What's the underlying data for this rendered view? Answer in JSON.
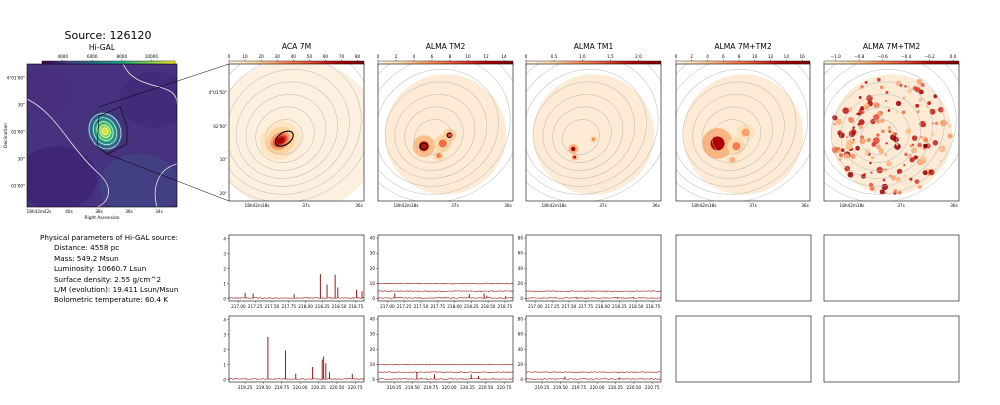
{
  "title": "Source: 126120",
  "colors": {
    "frame": "#000000",
    "axis_text": "#000000",
    "spectrum": "#8b0000",
    "contour": "#b9b9b9",
    "hot_low": "#fff5eb",
    "hot_high": "#7f0000",
    "viridis_low": "#440154",
    "viridis_high": "#fde725"
  },
  "params": {
    "header": "Physical parameters of Hi-GAL source:",
    "lines": [
      "Distance: 4558 pc",
      "Mass: 549.2 Msun",
      "Luminosity: 10660.7 Lsun",
      "Surface density: 2.55 g/cm^2",
      "L/M (evolution): 19.411 Lsun/Msun",
      "Bolometric temperature: 60.4 K"
    ]
  },
  "chart_data": [
    {
      "id": "higal",
      "type": "heatmap",
      "title": "Hi-GAL",
      "colormap": "viridis",
      "colorbar": {
        "ticks": [
          "4000",
          "6000",
          "8000",
          "10000"
        ],
        "range": [
          2600,
          11600
        ]
      },
      "yticks": [
        "4°01'00\"",
        "30\"",
        "02'00\"",
        "30\"",
        "03'00\""
      ],
      "xticks": [
        "18h42m42s",
        "40s",
        "38s",
        "36s",
        "34s"
      ],
      "ylabel": "Declination",
      "xlabel": "Right Ascension"
    },
    {
      "id": "aca7m",
      "type": "heatmap",
      "title": "ACA 7M",
      "colormap": "OrRd",
      "colorbar": {
        "ticks": [
          "0",
          "10",
          "20",
          "30",
          "40",
          "50",
          "60",
          "70",
          "80"
        ],
        "range": [
          0,
          84
        ]
      },
      "yticks": [
        "4°01'50\"",
        "02'00\"",
        "10\"",
        "20\""
      ],
      "xticks": [
        "18h42m38s",
        "37s",
        "36s"
      ]
    },
    {
      "id": "almatm2",
      "type": "heatmap",
      "title": "ALMA TM2",
      "colormap": "OrRd",
      "colorbar": {
        "ticks": [
          "0",
          "2",
          "4",
          "6",
          "8",
          "10",
          "12",
          "14"
        ],
        "range": [
          0,
          15
        ]
      },
      "xticks": [
        "18h42m38s",
        "37s",
        "36s"
      ]
    },
    {
      "id": "almatm1",
      "type": "heatmap",
      "title": "ALMA TM1",
      "colormap": "OrRd",
      "colorbar": {
        "ticks": [
          "0",
          "0.5",
          "1.0",
          "1.5",
          "2.0"
        ],
        "range": [
          0,
          2.4
        ]
      },
      "xticks": [
        "18h42m38s",
        "37s",
        "36s"
      ]
    },
    {
      "id": "alma7mtm2",
      "type": "heatmap",
      "title": "ALMA 7M+TM2",
      "colormap": "OrRd",
      "colorbar": {
        "ticks": [
          "0",
          "2",
          "4",
          "6",
          "8",
          "10",
          "12",
          "14",
          "16"
        ],
        "range": [
          0,
          17
        ]
      },
      "xticks": [
        "18h42m38s",
        "37s",
        "36s"
      ]
    },
    {
      "id": "alma7mtm2b",
      "type": "heatmap",
      "title": "ALMA 7M+TM2",
      "colormap": "OrRd",
      "colorbar": {
        "ticks": [
          "−1.0",
          "−0.8",
          "−0.6",
          "−0.4",
          "−0.2",
          "0.0"
        ],
        "range": [
          -1.1,
          0.05
        ]
      },
      "xticks": [
        "18h42m38s",
        "37s",
        "36s"
      ]
    },
    {
      "id": "spec_r1c1",
      "type": "line",
      "x_ticks": [
        217.0,
        217.25,
        217.5,
        217.75,
        218.0,
        218.25,
        218.5,
        218.75
      ],
      "xlim": [
        216.86,
        218.87
      ],
      "y_ticks": [
        0,
        1,
        2,
        3,
        4
      ],
      "ylim": [
        -0.15,
        4.25
      ],
      "baselines": [
        0.05
      ],
      "lines": [
        [
          217.1,
          0.35
        ],
        [
          217.22,
          0.3
        ],
        [
          217.83,
          0.25
        ],
        [
          218.22,
          1.6
        ],
        [
          218.32,
          0.9
        ],
        [
          218.44,
          1.55
        ],
        [
          218.48,
          0.7
        ],
        [
          218.76,
          0.55
        ],
        [
          218.84,
          0.45
        ]
      ]
    },
    {
      "id": "spec_r1c2",
      "type": "line",
      "x_ticks": [
        217.0,
        217.25,
        217.5,
        217.75,
        218.0,
        218.25,
        218.5,
        218.75
      ],
      "xlim": [
        216.86,
        218.87
      ],
      "y_ticks": [
        0,
        10,
        20,
        30,
        40
      ],
      "ylim": [
        -1.5,
        42
      ],
      "baselines": [
        0.5,
        5,
        10
      ],
      "lines": [
        [
          217.11,
          3
        ],
        [
          218.22,
          2.5
        ],
        [
          218.44,
          3
        ],
        [
          218.48,
          1.5
        ],
        [
          218.76,
          1.2
        ]
      ]
    },
    {
      "id": "spec_r1c3",
      "type": "line",
      "x_ticks": [
        217.0,
        217.25,
        217.5,
        217.75,
        218.0,
        218.25,
        218.5,
        218.75
      ],
      "xlim": [
        216.86,
        218.87
      ],
      "y_ticks": [
        0,
        20,
        40,
        60,
        80
      ],
      "ylim": [
        -3,
        84
      ],
      "baselines": [
        1,
        10
      ],
      "lines": [
        [
          217.62,
          1.5
        ],
        [
          218.22,
          1.2
        ],
        [
          218.46,
          1.2
        ]
      ]
    },
    {
      "id": "spec_r2c1",
      "type": "line",
      "x_ticks": [
        219.25,
        219.5,
        219.75,
        220.0,
        220.25,
        220.5,
        220.75
      ],
      "xlim": [
        219.03,
        220.87
      ],
      "y_ticks": [
        0,
        1,
        2,
        3,
        4
      ],
      "ylim": [
        -0.15,
        4.25
      ],
      "baselines": [
        0.05
      ],
      "lines": [
        [
          219.56,
          2.8
        ],
        [
          219.8,
          1.9
        ],
        [
          219.94,
          0.35
        ],
        [
          220.17,
          0.8
        ],
        [
          220.3,
          1.3
        ],
        [
          220.32,
          1.5
        ],
        [
          220.35,
          1.05
        ],
        [
          220.4,
          0.45
        ],
        [
          220.71,
          0.35
        ]
      ]
    },
    {
      "id": "spec_r2c2",
      "type": "line",
      "x_ticks": [
        219.25,
        219.5,
        219.75,
        220.0,
        220.25,
        220.5,
        220.75
      ],
      "xlim": [
        219.03,
        220.87
      ],
      "y_ticks": [
        0,
        10,
        20,
        30,
        40
      ],
      "ylim": [
        -1.5,
        42
      ],
      "baselines": [
        0.5,
        5,
        10
      ],
      "lines": [
        [
          219.56,
          4.5
        ],
        [
          219.8,
          3
        ],
        [
          220.3,
          3
        ],
        [
          220.4,
          2
        ]
      ]
    },
    {
      "id": "spec_r2c3",
      "type": "line",
      "x_ticks": [
        219.25,
        219.5,
        219.75,
        220.0,
        220.25,
        220.5,
        220.75
      ],
      "xlim": [
        219.03,
        220.87
      ],
      "y_ticks": [
        0,
        20,
        40,
        60,
        80
      ],
      "ylim": [
        -3,
        84
      ],
      "baselines": [
        1,
        10
      ],
      "lines": [
        [
          219.56,
          3
        ],
        [
          220.3,
          2
        ]
      ]
    }
  ]
}
